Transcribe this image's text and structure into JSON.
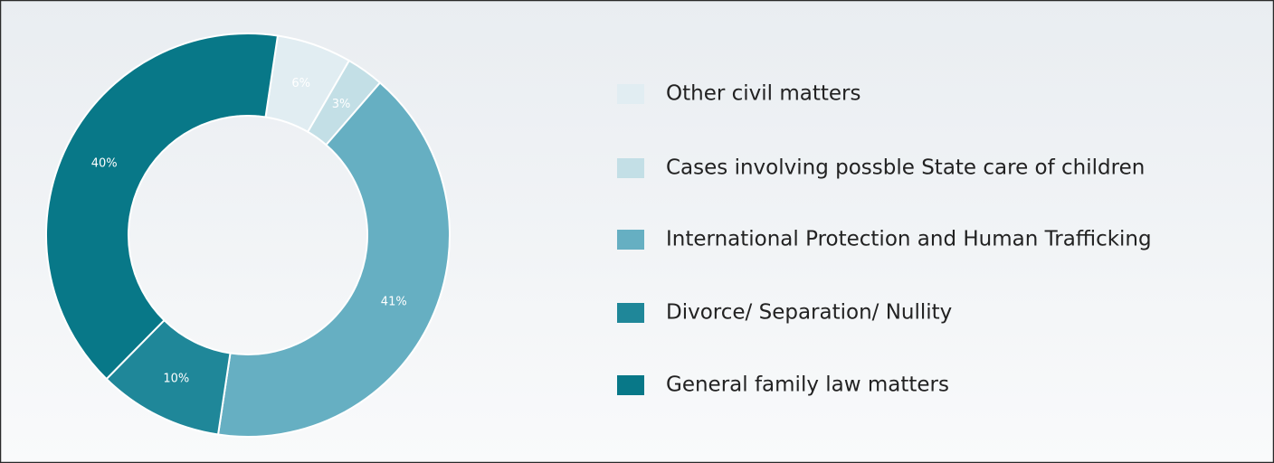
{
  "chart_data": {
    "type": "donut",
    "categories": [
      "Other civil matters",
      "Cases involving possble State care of children",
      "International Protection and Human Trafficking",
      "Divorce/ Separation/ Nullity",
      "General family law matters"
    ],
    "values": [
      6,
      3,
      41,
      10,
      40
    ],
    "value_labels": [
      "6%",
      "3%",
      "41%",
      "10%",
      "40%"
    ],
    "colors": [
      "#e1edf2",
      "#c3dfe6",
      "#66afc2",
      "#1f8799",
      "#087888"
    ],
    "legend": "right"
  }
}
